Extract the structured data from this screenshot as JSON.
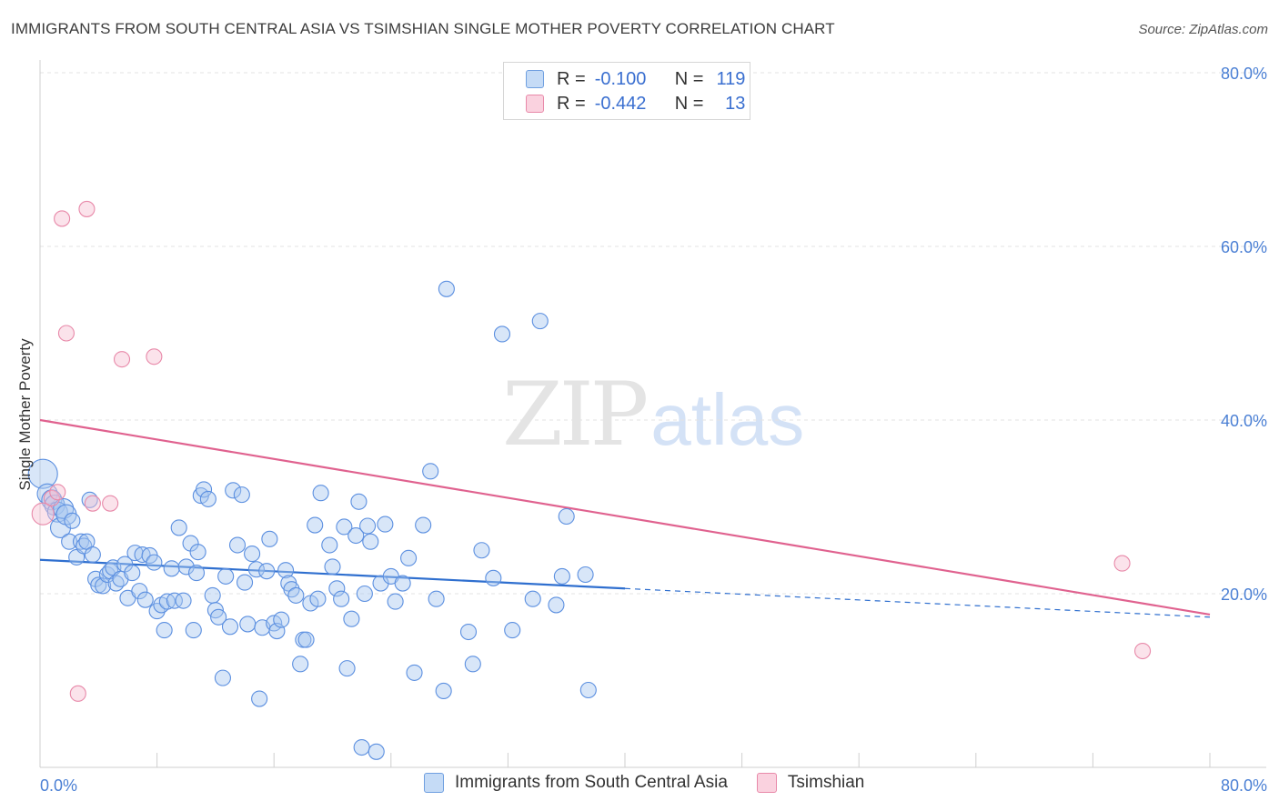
{
  "title": "IMMIGRANTS FROM SOUTH CENTRAL ASIA VS TSIMSHIAN SINGLE MOTHER POVERTY CORRELATION CHART",
  "source": "Source: ZipAtlas.com",
  "watermark": {
    "zip": "ZIP",
    "atlas": "atlas"
  },
  "legend": {
    "rows": [
      {
        "r_label": "R =",
        "r_value": "-0.100",
        "n_label": "N =",
        "n_value": "119",
        "color": "#a9c8f0",
        "border": "#6f9fe0"
      },
      {
        "r_label": "R =",
        "r_value": "-0.442",
        "n_label": "N =",
        "n_value": "13",
        "color": "#f6c1d2",
        "border": "#e889a9"
      }
    ]
  },
  "bottom_legend": [
    {
      "label": "Immigrants from South Central Asia",
      "color": "#c5dbf6",
      "border": "#6f9fe0"
    },
    {
      "label": "Tsimshian",
      "color": "#fad2df",
      "border": "#e889a9"
    }
  ],
  "colors": {
    "blue": "#5b8fe0",
    "blue_fill": "#a9c8f0",
    "pink": "#e889a9",
    "pink_fill": "#f6c1d2",
    "blue_line": "#2f6fcf",
    "pink_line": "#e0628f"
  },
  "chart_data": {
    "type": "scatter",
    "title": "IMMIGRANTS FROM SOUTH CENTRAL ASIA VS TSIMSHIAN SINGLE MOTHER POVERTY CORRELATION CHART",
    "xlabel": "",
    "ylabel": "Single Mother Poverty",
    "xlim": [
      0,
      80
    ],
    "ylim": [
      0,
      80
    ],
    "x_tick_labels": [
      "0.0%",
      "80.0%"
    ],
    "y_tick_labels": [
      "20.0%",
      "40.0%",
      "60.0%",
      "80.0%"
    ],
    "y_ticks": [
      20,
      40,
      60,
      80
    ],
    "grid": true,
    "series": [
      {
        "name": "Immigrants from South Central Asia",
        "points": [
          [
            0.2,
            33.8
          ],
          [
            0.5,
            31.5
          ],
          [
            0.8,
            30.8
          ],
          [
            1.0,
            30.2
          ],
          [
            1.2,
            29.4
          ],
          [
            1.4,
            27.6
          ],
          [
            1.6,
            29.8
          ],
          [
            1.8,
            29.1
          ],
          [
            2.2,
            28.4
          ],
          [
            2.0,
            26.0
          ],
          [
            2.5,
            24.2
          ],
          [
            2.8,
            26.0
          ],
          [
            3.0,
            25.5
          ],
          [
            3.2,
            26.0
          ],
          [
            3.4,
            30.8
          ],
          [
            3.6,
            24.5
          ],
          [
            3.8,
            21.7
          ],
          [
            4.0,
            21.0
          ],
          [
            4.3,
            20.9
          ],
          [
            4.6,
            22.2
          ],
          [
            4.8,
            22.6
          ],
          [
            5.0,
            23.0
          ],
          [
            5.2,
            21.2
          ],
          [
            5.5,
            21.7
          ],
          [
            5.8,
            23.4
          ],
          [
            6.0,
            19.5
          ],
          [
            6.3,
            22.4
          ],
          [
            6.5,
            24.7
          ],
          [
            6.8,
            20.3
          ],
          [
            7.0,
            24.5
          ],
          [
            7.2,
            19.3
          ],
          [
            7.5,
            24.4
          ],
          [
            7.8,
            23.6
          ],
          [
            8.0,
            18.0
          ],
          [
            8.3,
            18.7
          ],
          [
            8.5,
            15.8
          ],
          [
            8.7,
            19.1
          ],
          [
            9.0,
            22.9
          ],
          [
            9.2,
            19.2
          ],
          [
            9.5,
            27.6
          ],
          [
            9.8,
            19.2
          ],
          [
            10.0,
            23.1
          ],
          [
            10.3,
            25.8
          ],
          [
            10.5,
            15.8
          ],
          [
            10.7,
            22.4
          ],
          [
            10.8,
            24.8
          ],
          [
            11.0,
            31.3
          ],
          [
            11.2,
            32.0
          ],
          [
            11.5,
            30.9
          ],
          [
            11.8,
            19.8
          ],
          [
            12.0,
            18.1
          ],
          [
            12.2,
            17.3
          ],
          [
            12.5,
            10.3
          ],
          [
            12.7,
            22.0
          ],
          [
            13.0,
            16.2
          ],
          [
            13.2,
            31.9
          ],
          [
            13.5,
            25.6
          ],
          [
            13.8,
            31.4
          ],
          [
            14.0,
            21.3
          ],
          [
            14.2,
            16.5
          ],
          [
            14.5,
            24.6
          ],
          [
            14.8,
            22.8
          ],
          [
            15.0,
            7.9
          ],
          [
            15.2,
            16.1
          ],
          [
            15.5,
            22.6
          ],
          [
            15.7,
            26.3
          ],
          [
            16.0,
            16.6
          ],
          [
            16.2,
            15.7
          ],
          [
            16.5,
            17.0
          ],
          [
            16.8,
            22.7
          ],
          [
            17.0,
            21.2
          ],
          [
            17.2,
            20.5
          ],
          [
            17.5,
            19.8
          ],
          [
            17.8,
            11.9
          ],
          [
            18.0,
            14.7
          ],
          [
            18.2,
            14.7
          ],
          [
            18.5,
            18.9
          ],
          [
            18.8,
            27.9
          ],
          [
            19.0,
            19.4
          ],
          [
            19.2,
            31.6
          ],
          [
            19.8,
            25.6
          ],
          [
            20.0,
            23.1
          ],
          [
            20.3,
            20.6
          ],
          [
            20.6,
            19.4
          ],
          [
            20.8,
            27.7
          ],
          [
            21.0,
            11.4
          ],
          [
            21.3,
            17.1
          ],
          [
            21.6,
            26.7
          ],
          [
            21.8,
            30.6
          ],
          [
            22.2,
            20.0
          ],
          [
            22.4,
            27.8
          ],
          [
            22.6,
            26.0
          ],
          [
            22.0,
            2.3
          ],
          [
            23.0,
            1.8
          ],
          [
            23.3,
            21.2
          ],
          [
            23.6,
            28.0
          ],
          [
            24.0,
            22.0
          ],
          [
            24.3,
            19.1
          ],
          [
            24.8,
            21.2
          ],
          [
            25.2,
            24.1
          ],
          [
            25.6,
            10.9
          ],
          [
            26.2,
            27.9
          ],
          [
            26.7,
            34.1
          ],
          [
            27.1,
            19.4
          ],
          [
            27.6,
            8.8
          ],
          [
            27.8,
            55.1
          ],
          [
            29.3,
            15.6
          ],
          [
            29.6,
            11.9
          ],
          [
            30.2,
            25.0
          ],
          [
            31.0,
            21.8
          ],
          [
            31.6,
            49.9
          ],
          [
            32.3,
            15.8
          ],
          [
            33.7,
            19.4
          ],
          [
            34.2,
            51.4
          ],
          [
            35.3,
            18.7
          ],
          [
            35.7,
            22.0
          ],
          [
            36.0,
            28.9
          ],
          [
            37.3,
            22.2
          ],
          [
            37.5,
            8.9
          ]
        ],
        "trend": {
          "x0": 0,
          "y0": 23.9,
          "x1": 40,
          "y1": 20.6,
          "dashed_to_x": 80,
          "dashed_to_y": 17.3
        }
      },
      {
        "name": "Tsimshian",
        "points": [
          [
            0.2,
            29.2
          ],
          [
            0.8,
            31.0
          ],
          [
            1.2,
            31.7
          ],
          [
            1.5,
            63.2
          ],
          [
            1.8,
            50.0
          ],
          [
            2.6,
            8.5
          ],
          [
            3.2,
            64.3
          ],
          [
            3.6,
            30.4
          ],
          [
            4.8,
            30.4
          ],
          [
            5.6,
            47.0
          ],
          [
            7.8,
            47.3
          ],
          [
            74.0,
            23.5
          ],
          [
            75.4,
            13.4
          ]
        ],
        "trend": {
          "x0": 0,
          "y0": 40.0,
          "x1": 80,
          "y1": 17.6
        }
      }
    ]
  }
}
